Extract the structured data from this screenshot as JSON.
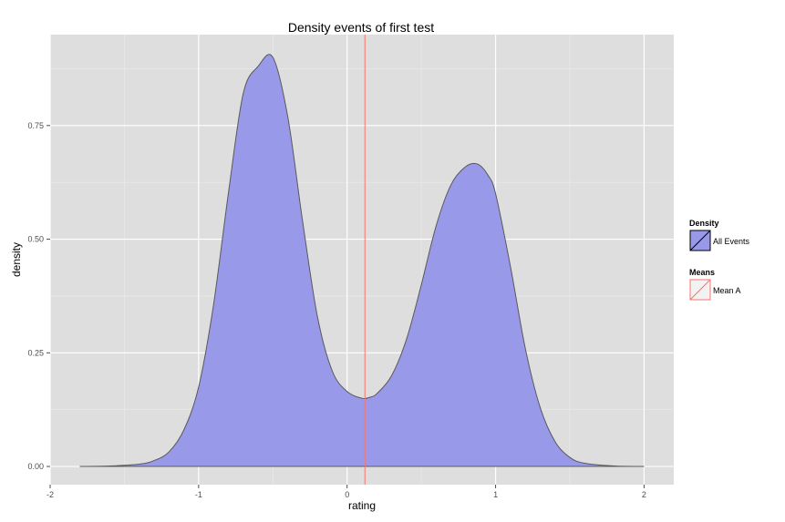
{
  "chart_data": {
    "type": "area",
    "title": "Density events of first test",
    "xlabel": "rating",
    "ylabel": "density",
    "xlim": [
      -2,
      2.2
    ],
    "ylim": [
      -0.04,
      0.95
    ],
    "xticks": [
      -2,
      -1,
      0,
      1,
      2
    ],
    "xtick_labels": [
      "-2",
      "-1",
      "0",
      "1",
      "2"
    ],
    "yticks": [
      0,
      0.25,
      0.5,
      0.75
    ],
    "ytick_labels": [
      "0.00",
      "0.25",
      "0.50",
      "0.75"
    ],
    "grid": true,
    "series": [
      {
        "name": "All Events",
        "fill": "#9999ea",
        "line": "#595959",
        "x": [
          -1.8,
          -1.6,
          -1.4,
          -1.3,
          -1.2,
          -1.1,
          -1.0,
          -0.9,
          -0.8,
          -0.7,
          -0.6,
          -0.5,
          -0.4,
          -0.3,
          -0.2,
          -0.1,
          0.0,
          0.1,
          0.15,
          0.2,
          0.3,
          0.4,
          0.5,
          0.6,
          0.7,
          0.8,
          0.88,
          0.95,
          1.0,
          1.1,
          1.2,
          1.3,
          1.4,
          1.5,
          1.6,
          1.8,
          2.0
        ],
        "y": [
          0.0,
          0.001,
          0.005,
          0.013,
          0.032,
          0.08,
          0.175,
          0.355,
          0.6,
          0.82,
          0.88,
          0.9,
          0.77,
          0.54,
          0.33,
          0.21,
          0.165,
          0.15,
          0.152,
          0.16,
          0.2,
          0.28,
          0.4,
          0.53,
          0.62,
          0.66,
          0.665,
          0.64,
          0.6,
          0.44,
          0.26,
          0.13,
          0.055,
          0.02,
          0.007,
          0.001,
          0.0
        ]
      }
    ],
    "mean_lines": [
      {
        "name": "Mean A",
        "x": 0.12,
        "color": "#f8766d"
      }
    ],
    "legend": {
      "placement": "right",
      "groups": [
        {
          "title": "Density",
          "items": [
            {
              "label": "All Events"
            }
          ]
        },
        {
          "title": "Means",
          "items": [
            {
              "label": "Mean A"
            }
          ]
        }
      ]
    },
    "colors": {
      "panel_bg": "#dedede",
      "grid": "#ffffff",
      "density_fill": "#9999ea",
      "density_line": "#595959",
      "mean_line": "#f8766d"
    }
  }
}
